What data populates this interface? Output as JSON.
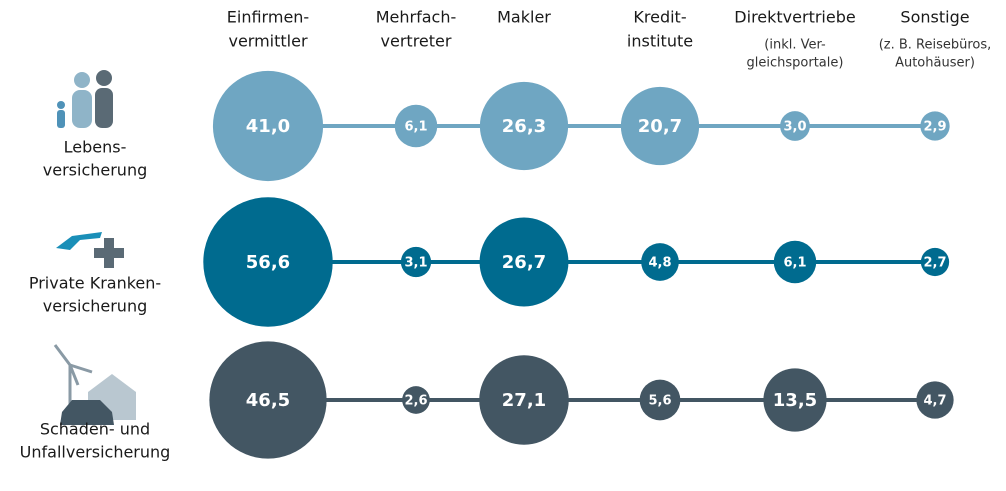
{
  "chart_data": {
    "type": "bubble",
    "categories": [
      [
        "Einfirmen-",
        "vermittler"
      ],
      [
        "Mehrfach-",
        "vertreter"
      ],
      [
        "Makler"
      ],
      [
        "Kredit-",
        "institute"
      ],
      [
        "Direktvertriebe"
      ],
      [
        "Sonstige"
      ]
    ],
    "category_notes": [
      null,
      null,
      null,
      null,
      [
        "(inkl. Ver-",
        "gleichsportale)"
      ],
      [
        "(z. B. Reisebüros,",
        "Autohäuser)"
      ]
    ],
    "series": [
      {
        "name": [
          "Lebens-",
          "versicherung"
        ],
        "color": "#6fa6c2",
        "values": [
          41.0,
          6.1,
          26.3,
          20.7,
          3.0,
          2.9
        ],
        "value_labels": [
          "41,0",
          "6,1",
          "26,3",
          "20,7",
          "3,0",
          "2,9"
        ]
      },
      {
        "name": [
          "Private Kranken-",
          "versicherung"
        ],
        "color": "#006b8f",
        "values": [
          56.6,
          3.1,
          26.7,
          4.8,
          6.1,
          2.7
        ],
        "value_labels": [
          "56,6",
          "3,1",
          "26,7",
          "4,8",
          "6,1",
          "2,7"
        ]
      },
      {
        "name": [
          "Schaden- und",
          "Unfallversicherung"
        ],
        "color": "#435663",
        "values": [
          46.5,
          2.6,
          27.1,
          5.6,
          13.5,
          4.7
        ],
        "value_labels": [
          "46,5",
          "2,6",
          "27,1",
          "5,6",
          "13,5",
          "4,7"
        ]
      }
    ]
  }
}
